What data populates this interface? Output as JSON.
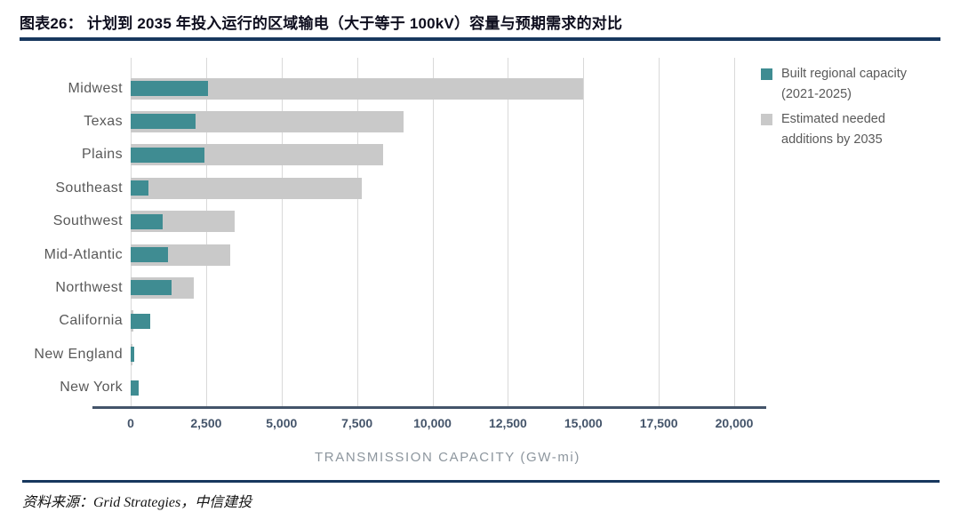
{
  "header": {
    "title": "图表26：  计划到 2035 年投入运行的区域输电（大于等于 100kV）容量与预期需求的对比"
  },
  "footer": {
    "source": "资料来源：Grid Strategies，中信建投"
  },
  "chart_data": {
    "type": "bar",
    "orientation": "horizontal",
    "title": "",
    "xlabel": "TRANSMISSION CAPACITY (GW-mi)",
    "ylabel": "",
    "xlim": [
      0,
      21000
    ],
    "xticks": [
      0,
      2500,
      5000,
      7500,
      10000,
      12500,
      15000,
      17500,
      20000
    ],
    "xtick_labels": [
      "0",
      "2,500",
      "5,000",
      "7,500",
      "10,000",
      "12,500",
      "15,000",
      "17,500",
      "20,000"
    ],
    "grid": "vertical",
    "legend_position": "top-right",
    "categories": [
      "Midwest",
      "Texas",
      "Plains",
      "Southeast",
      "Southwest",
      "Mid-Atlantic",
      "Northwest",
      "California",
      "New England",
      "New York"
    ],
    "series": [
      {
        "name": "Built regional capacity (2021-2025)",
        "color": "#3f8c92",
        "values": [
          2550,
          2150,
          2450,
          600,
          1050,
          1250,
          1350,
          650,
          120,
          270
        ]
      },
      {
        "name": "Estimated needed additions by 2035",
        "color": "#c9c9c9",
        "values": [
          15000,
          9050,
          8350,
          7650,
          3450,
          3300,
          2100,
          100,
          50,
          0
        ]
      }
    ]
  },
  "colors": {
    "accent_teal": "#3f8c92",
    "bar_gray": "#c9c9c9",
    "gridline": "#d9d9d9",
    "axis": "#44546a",
    "rule_navy": "#17375e",
    "label_gray": "#595959"
  }
}
